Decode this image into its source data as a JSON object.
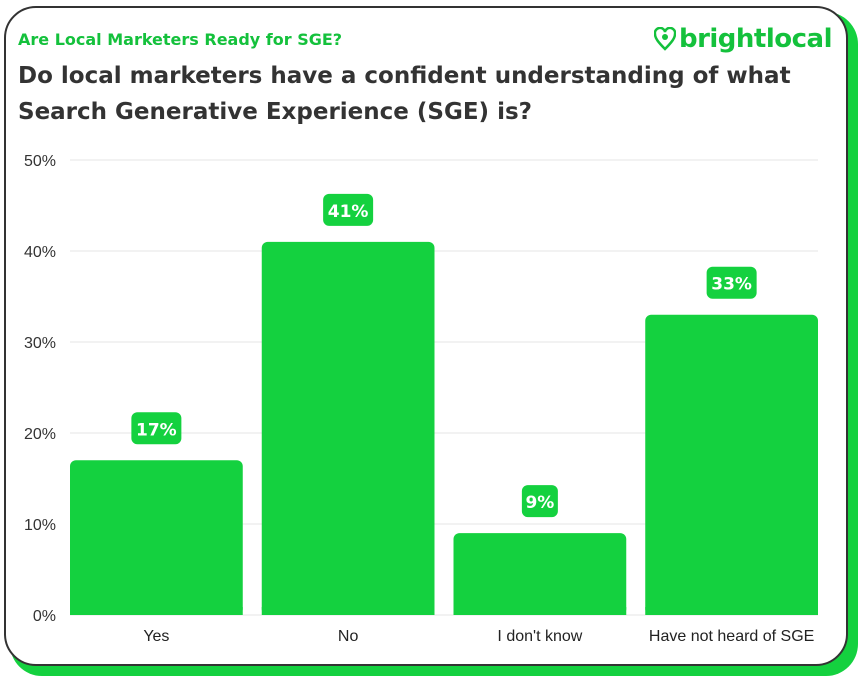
{
  "header": {
    "subtitle": "Are Local Marketers Ready for SGE?",
    "title": "Do local marketers have a confident understanding of what Search Generative Experience (SGE) is?",
    "logo_text": "brightlocal"
  },
  "colors": {
    "bar": "#14d13f",
    "accent": "#14c13c",
    "text": "#333333"
  },
  "chart_data": {
    "type": "bar",
    "title": "Do local marketers have a confident understanding of what Search Generative Experience (SGE) is?",
    "categories": [
      "Yes",
      "No",
      "I don't know",
      "Have not heard of SGE"
    ],
    "values": [
      17,
      41,
      9,
      33
    ],
    "data_labels": [
      "17%",
      "41%",
      "9%",
      "33%"
    ],
    "yticks": [
      "0%",
      "10%",
      "20%",
      "30%",
      "40%",
      "50%"
    ],
    "ylim": [
      0,
      50
    ],
    "grid": true,
    "xlabel": "",
    "ylabel": ""
  }
}
